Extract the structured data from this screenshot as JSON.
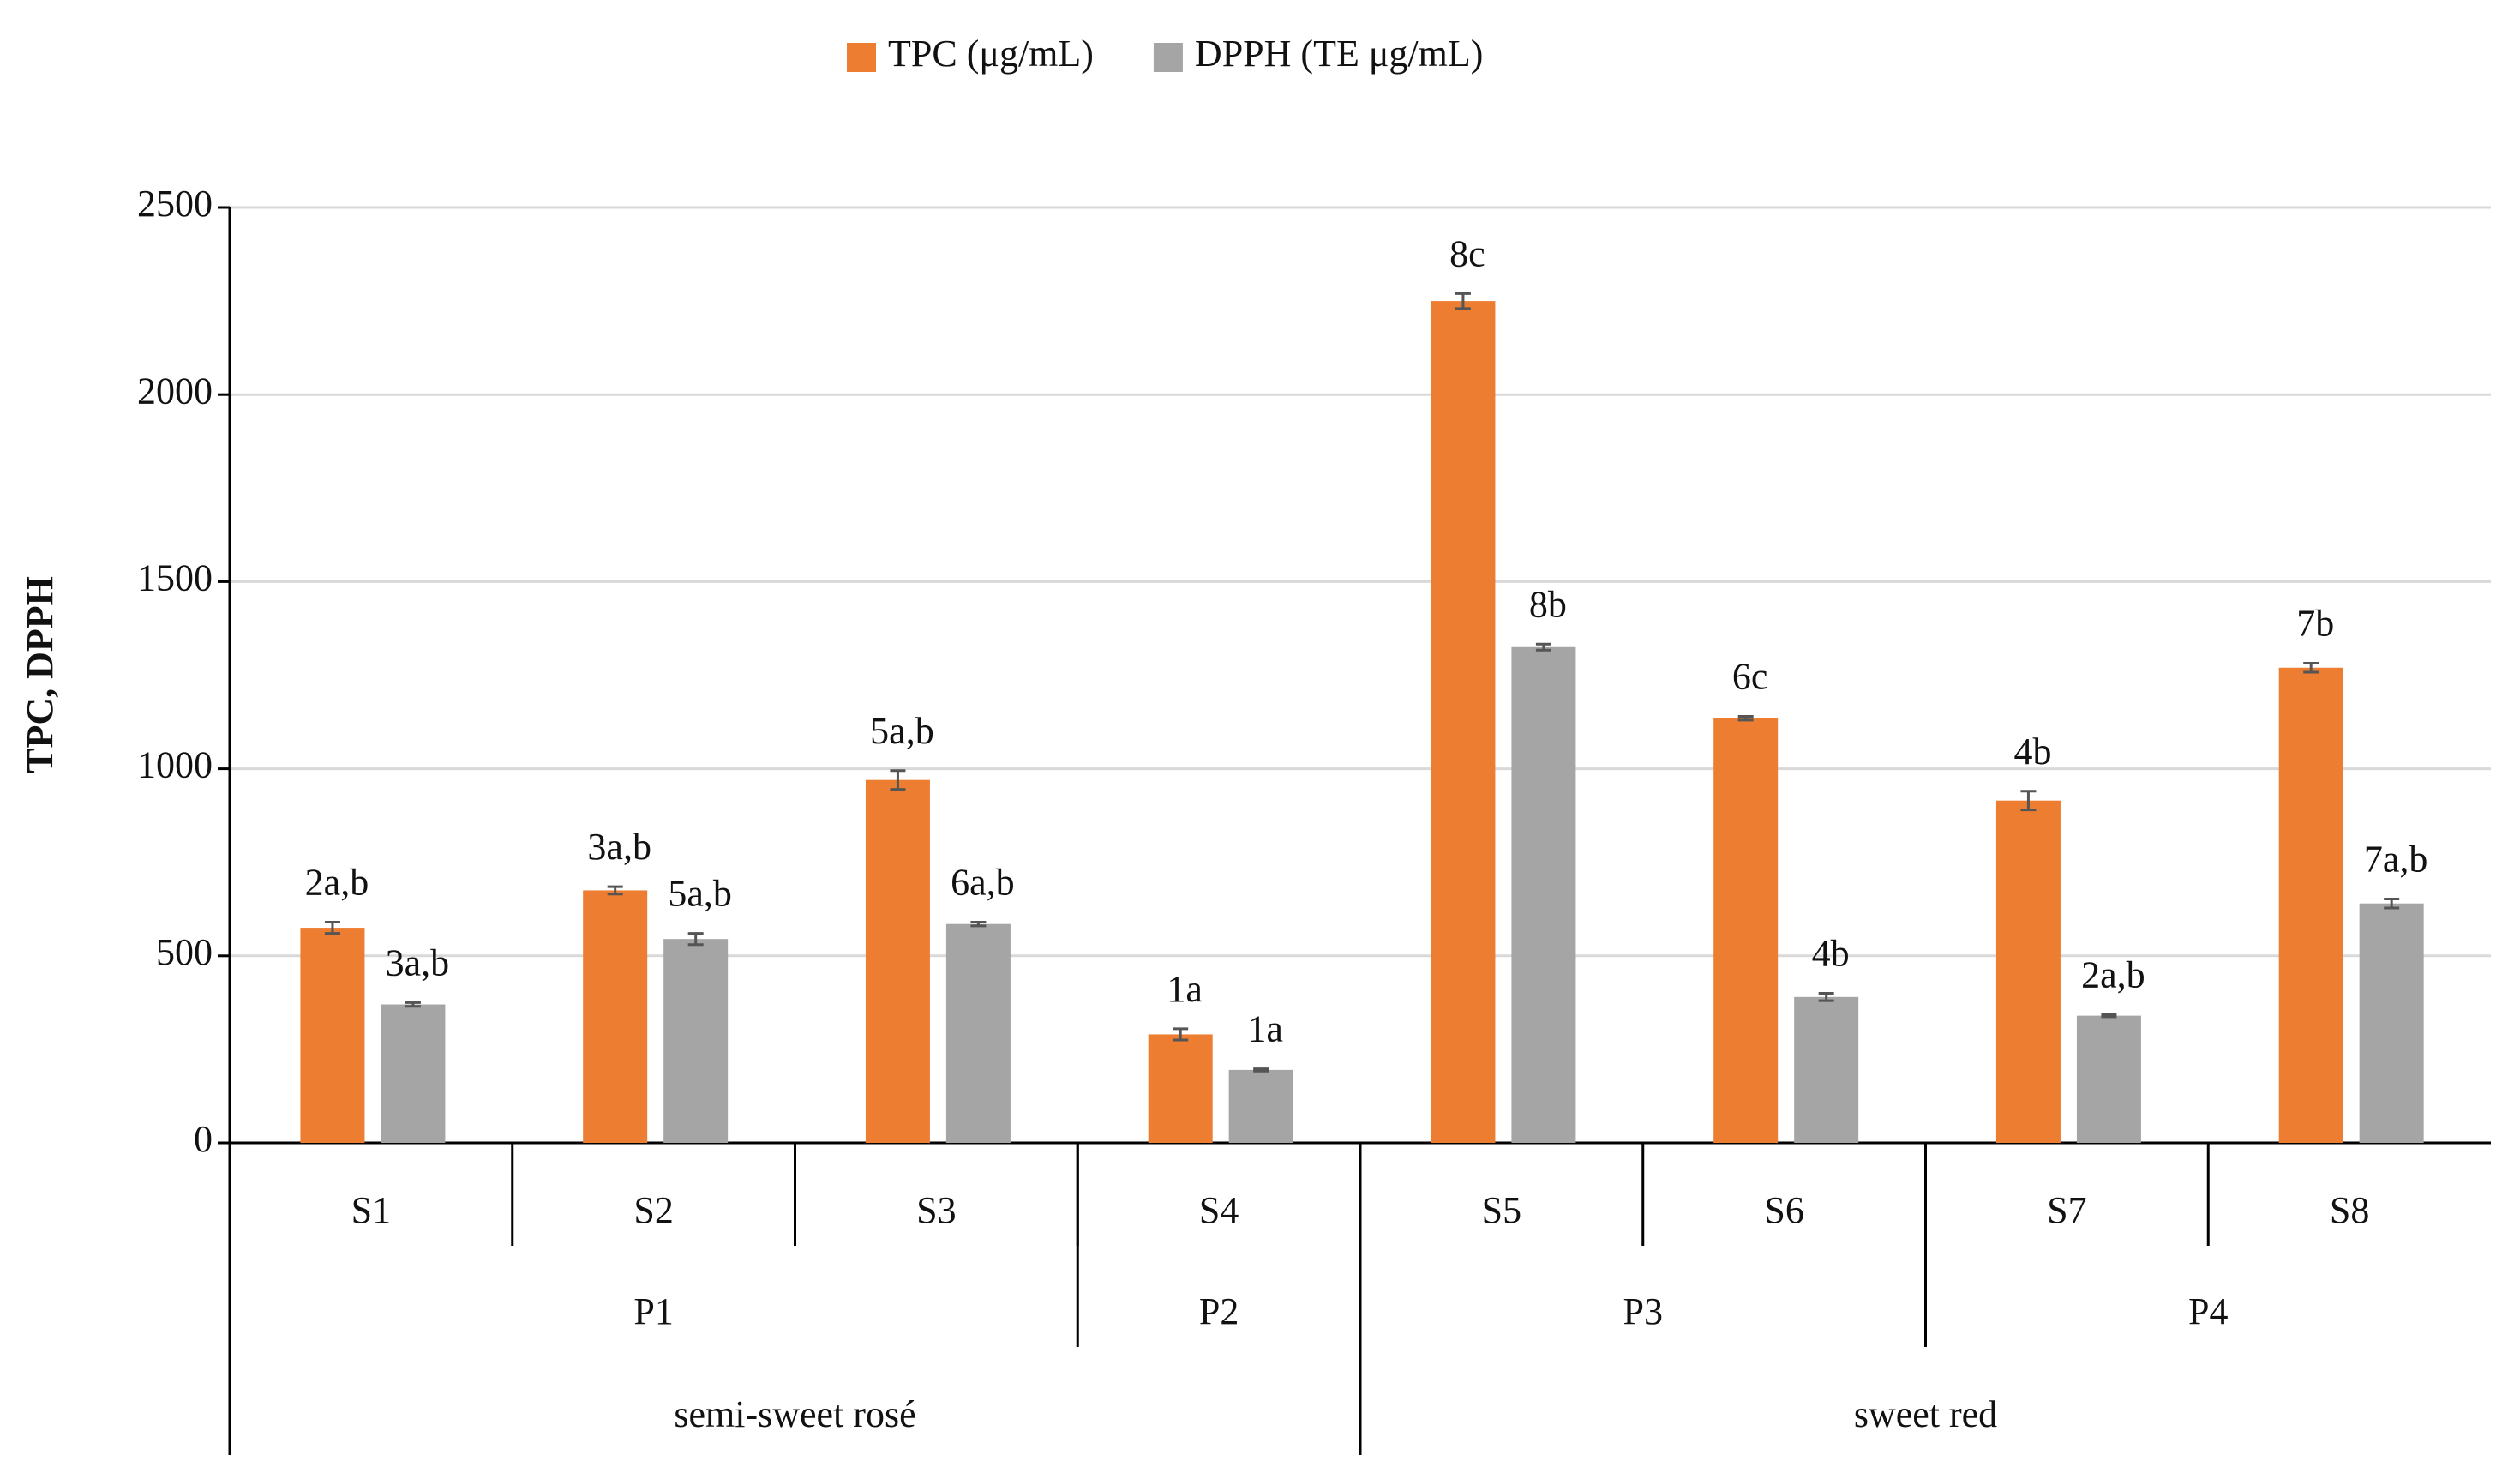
{
  "chart_data": {
    "type": "bar",
    "y_label": "TPC, DPPH",
    "categories": [
      "S1",
      "S2",
      "S3",
      "S4",
      "S5",
      "S6",
      "S7",
      "S8"
    ],
    "groups": [
      {
        "label": "P1",
        "span": 3
      },
      {
        "label": "P2",
        "span": 1
      },
      {
        "label": "P3",
        "span": 2
      },
      {
        "label": "P4",
        "span": 2
      }
    ],
    "types": [
      {
        "label": "semi-sweet rosé",
        "span": 4
      },
      {
        "label": "sweet red",
        "span": 4
      }
    ],
    "series": [
      {
        "name": "TPC (μg/mL)",
        "color": "#ed7d31",
        "values": [
          575,
          675,
          970,
          290,
          2250,
          1135,
          915,
          1270
        ],
        "errors": [
          15,
          10,
          25,
          15,
          20,
          5,
          25,
          12
        ],
        "annotations": [
          "2a,b",
          "3a,b",
          "5a,b",
          "1a",
          "8c",
          "6c",
          "4b",
          "7b"
        ]
      },
      {
        "name": "DPPH (TE μg/mL)",
        "color": "#a5a5a5",
        "values": [
          370,
          545,
          585,
          195,
          1325,
          390,
          340,
          640
        ],
        "errors": [
          5,
          15,
          5,
          3,
          8,
          10,
          3,
          12
        ],
        "annotations": [
          "3a,b",
          "5a,b",
          "6a,b",
          "1a",
          "8b",
          "4b",
          "2a,b",
          "7a,b"
        ]
      }
    ],
    "ylim": [
      0,
      2500
    ],
    "yticks": [
      0,
      500,
      1000,
      1500,
      2000,
      2500
    ],
    "grid": true,
    "legend": "top"
  }
}
